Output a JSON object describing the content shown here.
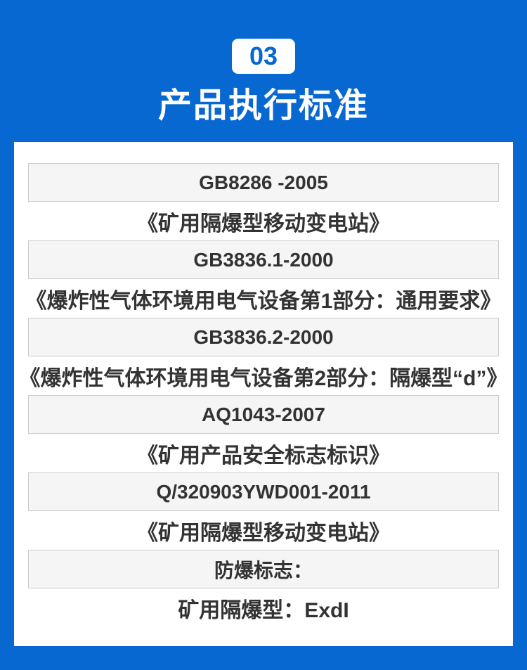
{
  "page": {
    "bg_color": "#0768d2",
    "card_bg": "#ffffff",
    "bar_bg": "#f5f5f5",
    "bar_border": "#cccccc",
    "text_color": "#333333"
  },
  "header": {
    "section_number": "03",
    "title": "产品执行标准"
  },
  "standards": [
    {
      "type": "code",
      "text": "GB8286 -2005"
    },
    {
      "type": "desc",
      "text": "《矿用隔爆型移动变电站》"
    },
    {
      "type": "code",
      "text": "GB3836.1-2000"
    },
    {
      "type": "desc",
      "text": "《爆炸性气体环境用电气设备第1部分：通用要求》"
    },
    {
      "type": "code",
      "text": "GB3836.2-2000"
    },
    {
      "type": "desc",
      "text": "《爆炸性气体环境用电气设备第2部分：隔爆型“d”》"
    },
    {
      "type": "code",
      "text": "AQ1043-2007"
    },
    {
      "type": "desc",
      "text": "《矿用产品安全标志标识》"
    },
    {
      "type": "code",
      "text": "Q/320903YWD001-2011"
    },
    {
      "type": "desc",
      "text": "《矿用隔爆型移动变电站》"
    },
    {
      "type": "code",
      "text": "防爆标志："
    },
    {
      "type": "desc",
      "text": "矿用隔爆型：ExdI"
    }
  ]
}
